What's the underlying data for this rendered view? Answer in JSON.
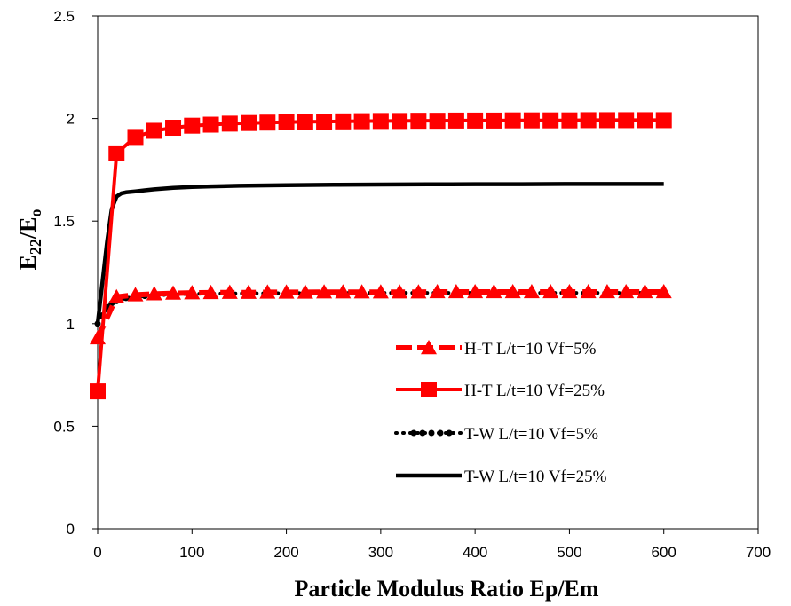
{
  "chart_data": {
    "type": "line",
    "xlabel": "Particle Modulus Ratio Ep/Em",
    "ylabel": {
      "base": "E",
      "sub1": "22",
      "mid": "/E",
      "sub2": "o"
    },
    "xlim": [
      0,
      700
    ],
    "ylim": [
      0,
      2.5
    ],
    "x_ticks": [
      "0",
      "100",
      "200",
      "300",
      "400",
      "500",
      "600",
      "700"
    ],
    "y_ticks": [
      "0",
      "0.5",
      "1",
      "1.5",
      "2",
      "2.5"
    ],
    "grid": false,
    "legend_position": "lower-right",
    "series": [
      {
        "name": "H-T L/t=10 Vf=5%",
        "color": "#ff0000",
        "line_style": "dashed",
        "marker": "triangle",
        "x": [
          0,
          20,
          40,
          60,
          80,
          100,
          120,
          140,
          160,
          180,
          200,
          220,
          240,
          260,
          280,
          300,
          320,
          340,
          360,
          380,
          400,
          420,
          440,
          460,
          480,
          500,
          520,
          540,
          560,
          580,
          600
        ],
        "y": [
          0.93,
          1.13,
          1.14,
          1.145,
          1.148,
          1.15,
          1.151,
          1.152,
          1.152,
          1.153,
          1.153,
          1.153,
          1.154,
          1.154,
          1.154,
          1.154,
          1.154,
          1.154,
          1.155,
          1.155,
          1.155,
          1.155,
          1.155,
          1.155,
          1.155,
          1.155,
          1.155,
          1.155,
          1.155,
          1.155,
          1.155
        ]
      },
      {
        "name": "H-T L/t=10 Vf=25%",
        "color": "#ff0000",
        "line_style": "solid",
        "marker": "square",
        "x": [
          0,
          20,
          40,
          60,
          80,
          100,
          120,
          140,
          160,
          180,
          200,
          220,
          240,
          260,
          280,
          300,
          320,
          340,
          360,
          380,
          400,
          420,
          440,
          460,
          480,
          500,
          520,
          540,
          560,
          580,
          600
        ],
        "y": [
          0.67,
          1.83,
          1.91,
          1.94,
          1.955,
          1.965,
          1.97,
          1.975,
          1.978,
          1.98,
          1.982,
          1.984,
          1.985,
          1.986,
          1.987,
          1.988,
          1.988,
          1.989,
          1.989,
          1.99,
          1.99,
          1.99,
          1.991,
          1.991,
          1.991,
          1.991,
          1.992,
          1.992,
          1.992,
          1.992,
          1.992
        ]
      },
      {
        "name": "T-W L/t=10 Vf=5%",
        "color": "#000000",
        "line_style": "dotted",
        "marker": "dot",
        "x": [
          0,
          5,
          10,
          15,
          20,
          25,
          30,
          40,
          50,
          60,
          80,
          100,
          120,
          140,
          160,
          180,
          200,
          220,
          240,
          260,
          280,
          300,
          320,
          340,
          360,
          380,
          400,
          420,
          440,
          460,
          480,
          500,
          520,
          540,
          560,
          580,
          600
        ],
        "y": [
          1.0,
          1.04,
          1.08,
          1.1,
          1.11,
          1.12,
          1.125,
          1.13,
          1.135,
          1.138,
          1.142,
          1.145,
          1.146,
          1.147,
          1.148,
          1.148,
          1.149,
          1.149,
          1.149,
          1.15,
          1.15,
          1.15,
          1.15,
          1.15,
          1.15,
          1.15,
          1.15,
          1.15,
          1.15,
          1.15,
          1.15,
          1.15,
          1.15,
          1.15,
          1.15,
          1.15,
          1.15
        ]
      },
      {
        "name": "T-W L/t=10 Vf=25%",
        "color": "#000000",
        "line_style": "solid",
        "marker": "none",
        "x": [
          0,
          5,
          10,
          15,
          20,
          25,
          30,
          40,
          50,
          60,
          80,
          100,
          120,
          150,
          200,
          250,
          300,
          350,
          400,
          450,
          500,
          550,
          600
        ],
        "y": [
          1.0,
          1.2,
          1.4,
          1.56,
          1.62,
          1.635,
          1.64,
          1.645,
          1.65,
          1.655,
          1.662,
          1.666,
          1.669,
          1.672,
          1.675,
          1.677,
          1.678,
          1.679,
          1.68,
          1.68,
          1.681,
          1.681,
          1.681
        ]
      }
    ]
  }
}
